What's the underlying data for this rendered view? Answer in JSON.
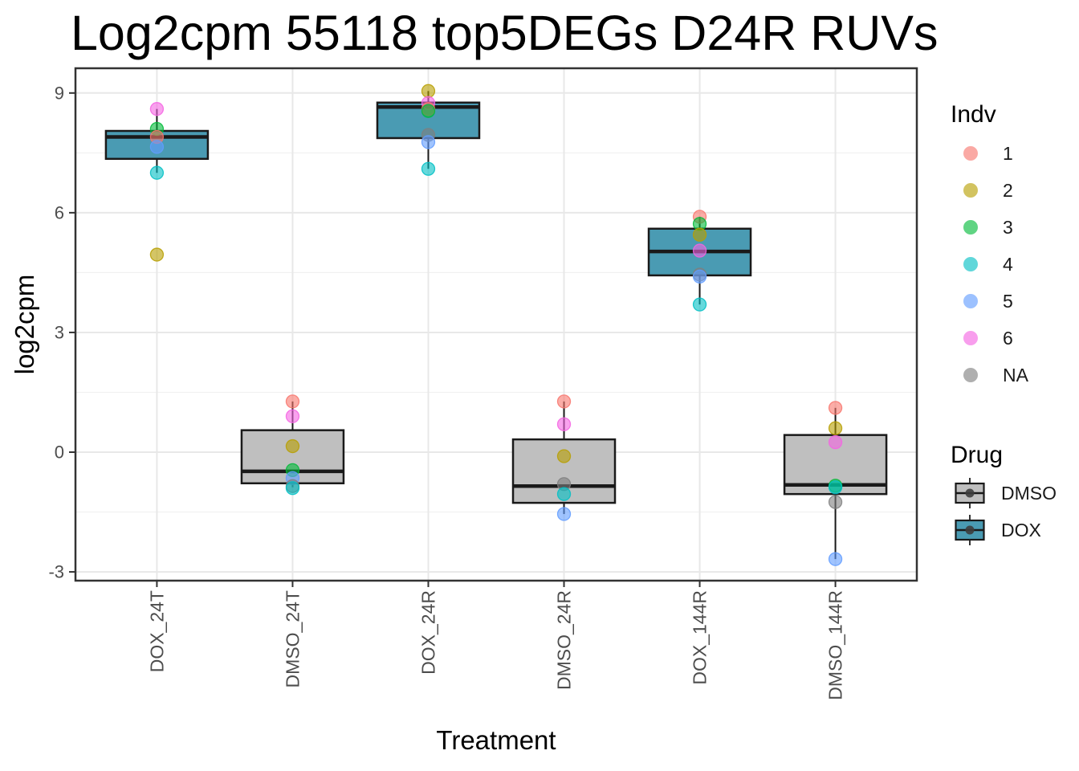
{
  "chart_data": {
    "type": "boxplot",
    "title": "Log2cpm 55118 top5DEGs D24R RUVs",
    "xlabel": "Treatment",
    "ylabel": "log2cpm",
    "ylim": [
      -3.22,
      9.62
    ],
    "yticks": [
      9,
      6,
      3,
      0,
      -3
    ],
    "yticks_minor": [
      7.5,
      4.5,
      1.5,
      -1.5
    ],
    "grid": "horizontal major+minor, vertical major at category centers",
    "legend_position": "right",
    "point_alpha": 0.6,
    "categories": [
      "DOX_24T",
      "DMSO_24T",
      "DOX_24R",
      "DMSO_24R",
      "DOX_144R",
      "DMSO_144R"
    ],
    "groups": [
      {
        "label": "DOX_24T",
        "drug": "DOX",
        "whisker_low": 7.0,
        "q1": 7.35,
        "median": 7.9,
        "q3": 8.05,
        "whisker_high": 8.6,
        "points": [
          {
            "indv": "6",
            "value": 8.6
          },
          {
            "indv": "3",
            "value": 8.1
          },
          {
            "indv": "1",
            "value": 7.9
          },
          {
            "indv": "5",
            "value": 7.65
          },
          {
            "indv": "4",
            "value": 7.0
          },
          {
            "indv": "2",
            "value": 4.95
          }
        ]
      },
      {
        "label": "DMSO_24T",
        "drug": "DMSO",
        "whisker_low": -0.88,
        "q1": -0.78,
        "median": -0.48,
        "q3": 0.55,
        "whisker_high": 1.27,
        "points": [
          {
            "indv": "1",
            "value": 1.27
          },
          {
            "indv": "6",
            "value": 0.9
          },
          {
            "indv": "2",
            "value": 0.15
          },
          {
            "indv": "3",
            "value": -0.45
          },
          {
            "indv": "5",
            "value": -0.65
          },
          {
            "indv": "NA",
            "value": -0.85
          },
          {
            "indv": "4",
            "value": -0.9
          }
        ]
      },
      {
        "label": "DOX_24R",
        "drug": "DOX",
        "whisker_low": 7.1,
        "q1": 7.87,
        "median": 8.65,
        "q3": 8.76,
        "whisker_high": 9.05,
        "points": [
          {
            "indv": "2",
            "value": 9.05
          },
          {
            "indv": "6",
            "value": 8.75
          },
          {
            "indv": "1",
            "value": 8.6
          },
          {
            "indv": "3",
            "value": 8.55
          },
          {
            "indv": "NA",
            "value": 7.95
          },
          {
            "indv": "5",
            "value": 7.77
          },
          {
            "indv": "4",
            "value": 7.1
          }
        ]
      },
      {
        "label": "DMSO_24R",
        "drug": "DMSO",
        "whisker_low": -1.55,
        "q1": -1.27,
        "median": -0.85,
        "q3": 0.32,
        "whisker_high": 1.27,
        "points": [
          {
            "indv": "1",
            "value": 1.27
          },
          {
            "indv": "6",
            "value": 0.7
          },
          {
            "indv": "2",
            "value": -0.1
          },
          {
            "indv": "NA",
            "value": -0.8
          },
          {
            "indv": "4",
            "value": -1.05
          },
          {
            "indv": "5",
            "value": -1.55
          }
        ]
      },
      {
        "label": "DOX_144R",
        "drug": "DOX",
        "whisker_low": 3.7,
        "q1": 4.43,
        "median": 5.03,
        "q3": 5.6,
        "whisker_high": 5.9,
        "points": [
          {
            "indv": "1",
            "value": 5.9
          },
          {
            "indv": "3",
            "value": 5.72
          },
          {
            "indv": "2",
            "value": 5.45
          },
          {
            "indv": "6",
            "value": 5.05
          },
          {
            "indv": "NA",
            "value": 4.45
          },
          {
            "indv": "5",
            "value": 4.4
          },
          {
            "indv": "4",
            "value": 3.7
          }
        ]
      },
      {
        "label": "DMSO_144R",
        "drug": "DMSO",
        "whisker_low": -2.68,
        "q1": -1.05,
        "median": -0.82,
        "q3": 0.43,
        "whisker_high": 1.11,
        "points": [
          {
            "indv": "1",
            "value": 1.11
          },
          {
            "indv": "2",
            "value": 0.6
          },
          {
            "indv": "6",
            "value": 0.25
          },
          {
            "indv": "3",
            "value": -0.84
          },
          {
            "indv": "4",
            "value": -0.88
          },
          {
            "indv": "NA",
            "value": -1.25
          },
          {
            "indv": "5",
            "value": -2.68
          }
        ]
      }
    ],
    "legend_indv": {
      "title": "Indv",
      "entries": [
        {
          "label": "1",
          "color": "#F8766D"
        },
        {
          "label": "2",
          "color": "#B79F00"
        },
        {
          "label": "3",
          "color": "#00BA38"
        },
        {
          "label": "4",
          "color": "#00BFC4"
        },
        {
          "label": "5",
          "color": "#619CFF"
        },
        {
          "label": "6",
          "color": "#F564E3"
        },
        {
          "label": "NA",
          "color": "#7F7F7F"
        }
      ]
    },
    "legend_drug": {
      "title": "Drug",
      "entries": [
        {
          "label": "DMSO",
          "color": "#BFBFBF"
        },
        {
          "label": "DOX",
          "color": "#4A9BB3"
        }
      ]
    },
    "colors": {
      "dox_fill": "#4A9BB3",
      "dmso_fill": "#BFBFBF",
      "box_border": "#1A1A1A",
      "panel_border": "#333333",
      "grid_major": "#E8E8E8",
      "grid_minor": "#F1F1F1",
      "axis_text": "#4D4D4D"
    }
  }
}
